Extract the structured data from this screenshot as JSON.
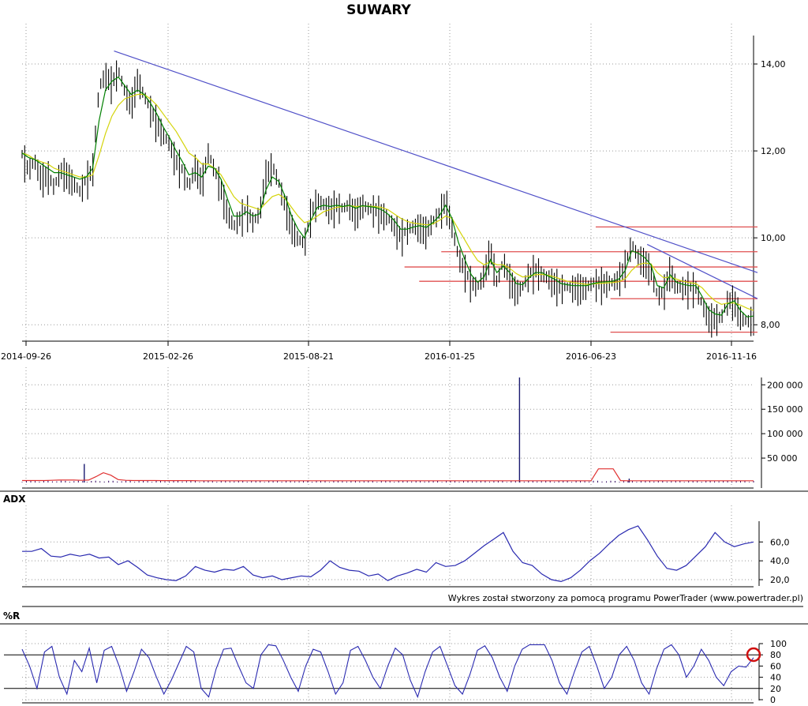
{
  "chart_data": {
    "title": "SUWARY",
    "credit": "Wykres został stworzony za pomocą programu PowerTrader (www.powertrader.pl)",
    "dates": [
      "2014-09-26",
      "2015-02-26",
      "2015-08-21",
      "2016-01-25",
      "2016-06-23",
      "2016-11-16"
    ],
    "panels": [
      {
        "id": "price",
        "type": "ohlc",
        "label": "",
        "ylim": [
          7.75,
          14.6
        ],
        "yticks": [
          "14,00",
          "12,00",
          "10,00",
          "8,00"
        ],
        "ytick_values": [
          14,
          12,
          10,
          8
        ],
        "close": [
          11.95,
          11.6,
          11.8,
          11.4,
          11.5,
          11.2,
          11.6,
          11.5,
          11.3,
          11.1,
          11.4,
          11.6,
          13.5,
          13.8,
          13.6,
          13.9,
          13.4,
          13.1,
          13.7,
          13.3,
          13.0,
          12.7,
          12.4,
          12.2,
          11.8,
          11.6,
          11.2,
          11.7,
          11.3,
          12.0,
          11.6,
          11.2,
          10.6,
          10.3,
          10.5,
          10.7,
          10.4,
          10.6,
          11.5,
          11.7,
          11.3,
          10.8,
          10.3,
          10.0,
          9.9,
          10.6,
          10.9,
          10.8,
          10.7,
          10.8,
          10.7,
          10.8,
          10.6,
          10.8,
          10.7,
          10.7,
          10.6,
          10.5,
          10.3,
          10.1,
          10.2,
          10.3,
          10.3,
          10.2,
          10.4,
          10.6,
          10.9,
          10.3,
          9.6,
          9.3,
          9.0,
          8.9,
          9.2,
          9.8,
          9.0,
          9.5,
          9.1,
          8.8,
          8.9,
          9.2,
          9.3,
          9.2,
          9.1,
          9.0,
          8.9,
          8.9,
          8.9,
          8.9,
          8.9,
          9.0,
          9.0,
          9.0,
          9.0,
          9.1,
          9.4,
          9.9,
          9.6,
          9.5,
          9.3,
          8.7,
          8.8,
          9.3,
          8.9,
          8.9,
          8.9,
          8.9,
          8.5,
          8.2,
          8.2,
          8.2,
          8.6,
          8.6,
          8.2,
          8.1,
          8.2
        ],
        "ma_fast": [
          11.95,
          11.85,
          11.8,
          11.7,
          11.6,
          11.5,
          11.5,
          11.45,
          11.4,
          11.35,
          11.4,
          11.6,
          12.7,
          13.4,
          13.6,
          13.7,
          13.5,
          13.3,
          13.4,
          13.3,
          13.1,
          12.85,
          12.55,
          12.3,
          12.0,
          11.75,
          11.45,
          11.5,
          11.4,
          11.65,
          11.6,
          11.35,
          10.9,
          10.5,
          10.5,
          10.6,
          10.5,
          10.55,
          11.1,
          11.4,
          11.3,
          10.95,
          10.5,
          10.2,
          10.0,
          10.4,
          10.7,
          10.75,
          10.72,
          10.75,
          10.72,
          10.75,
          10.68,
          10.74,
          10.72,
          10.7,
          10.65,
          10.55,
          10.4,
          10.2,
          10.2,
          10.25,
          10.28,
          10.24,
          10.35,
          10.5,
          10.75,
          10.45,
          9.9,
          9.5,
          9.15,
          8.98,
          9.1,
          9.5,
          9.2,
          9.35,
          9.2,
          8.95,
          8.92,
          9.08,
          9.2,
          9.2,
          9.12,
          9.05,
          8.95,
          8.92,
          8.9,
          8.9,
          8.9,
          8.95,
          8.98,
          8.99,
          9.0,
          9.05,
          9.25,
          9.7,
          9.65,
          9.55,
          9.38,
          8.9,
          8.85,
          9.15,
          8.98,
          8.93,
          8.9,
          8.9,
          8.65,
          8.35,
          8.25,
          8.22,
          8.48,
          8.55,
          8.32,
          8.18,
          8.2
        ],
        "ma_slow": [
          11.95,
          11.9,
          11.8,
          11.75,
          11.7,
          11.6,
          11.55,
          11.5,
          11.45,
          11.4,
          11.4,
          11.45,
          11.9,
          12.4,
          12.8,
          13.05,
          13.2,
          13.25,
          13.3,
          13.3,
          13.2,
          13.05,
          12.85,
          12.65,
          12.45,
          12.2,
          11.95,
          11.85,
          11.7,
          11.7,
          11.6,
          11.45,
          11.2,
          10.95,
          10.8,
          10.75,
          10.7,
          10.65,
          10.8,
          10.95,
          11.0,
          10.9,
          10.7,
          10.5,
          10.35,
          10.4,
          10.5,
          10.6,
          10.65,
          10.7,
          10.72,
          10.74,
          10.72,
          10.73,
          10.73,
          10.72,
          10.7,
          10.65,
          10.55,
          10.45,
          10.38,
          10.34,
          10.32,
          10.3,
          10.32,
          10.4,
          10.5,
          10.45,
          10.2,
          9.95,
          9.7,
          9.48,
          9.38,
          9.45,
          9.38,
          9.38,
          9.3,
          9.18,
          9.1,
          9.12,
          9.15,
          9.16,
          9.14,
          9.1,
          9.05,
          9.0,
          8.97,
          8.95,
          8.93,
          8.94,
          8.95,
          8.96,
          8.97,
          8.99,
          9.06,
          9.25,
          9.38,
          9.42,
          9.4,
          9.2,
          9.08,
          9.1,
          9.05,
          9.0,
          8.97,
          8.95,
          8.85,
          8.68,
          8.55,
          8.47,
          8.5,
          8.5,
          8.45,
          8.38,
          8.33
        ],
        "trend_lines": [
          {
            "x": [
              0.125,
              1.0
            ],
            "y": [
              14.3,
              9.2
            ]
          },
          {
            "x": [
              0.85,
              1.0
            ],
            "y": [
              9.85,
              8.6
            ]
          }
        ],
        "levels": [
          {
            "value": 10.25,
            "from": 0.78
          },
          {
            "value": 9.68,
            "from": 0.57
          },
          {
            "value": 9.33,
            "from": 0.52
          },
          {
            "value": 9.0,
            "from": 0.54
          },
          {
            "value": 8.6,
            "from": 0.8
          },
          {
            "value": 7.83,
            "from": 0.8
          }
        ]
      },
      {
        "id": "volume",
        "type": "volume",
        "label": "",
        "ylim": [
          0,
          215000
        ],
        "yticks": [
          "200 000",
          "150 000",
          "100 000",
          "50 000"
        ],
        "ytick_values": [
          200000,
          150000,
          100000,
          50000
        ],
        "spikes": [
          {
            "x": 0.085,
            "value": 38000
          },
          {
            "x": 0.68,
            "value": 215000
          },
          {
            "x": 0.83,
            "value": 8000
          }
        ],
        "avg_line": [
          4000,
          4000,
          4000,
          4000,
          4500,
          5000,
          5000,
          5000,
          4500,
          5000,
          12000,
          20000,
          15000,
          6000,
          4500,
          4000,
          4000,
          4000,
          4000,
          3800,
          3800,
          3800,
          3800,
          3800,
          3600,
          3600,
          3600,
          3600,
          3600,
          3600,
          3600,
          3600,
          3500,
          3500,
          3500,
          3500,
          3500,
          3500,
          3500,
          3500,
          3500,
          3500,
          3500,
          3500,
          3500,
          3500,
          3500,
          3500,
          3500,
          3500,
          3500,
          3500,
          3500,
          3500,
          3500,
          3500,
          3500,
          3500,
          3500,
          3500,
          3500,
          3500,
          3500,
          3500,
          3500,
          3500,
          3500,
          3500,
          3500,
          3500,
          3500,
          3500,
          3500,
          3500,
          3500,
          3500,
          3500,
          3500,
          28000,
          28000,
          28000,
          3800,
          3600,
          3500,
          3500,
          3500,
          3500,
          3500,
          3500,
          3500,
          3500,
          3500,
          3500,
          3500,
          3500,
          3500,
          3500,
          3500,
          3500,
          3500
        ]
      },
      {
        "id": "adx",
        "type": "line",
        "label": "ADX",
        "ylim": [
          15,
          82
        ],
        "yticks": [
          "60,0",
          "40,0",
          "20,0"
        ],
        "ytick_values": [
          60,
          40,
          20
        ],
        "values": [
          50,
          50,
          53,
          45,
          44,
          47,
          45,
          47,
          43,
          44,
          36,
          40,
          33,
          25,
          22,
          20,
          19,
          24,
          34,
          30,
          28,
          31,
          30,
          34,
          25,
          22,
          24,
          20,
          22,
          24,
          23,
          30,
          40,
          33,
          30,
          29,
          24,
          26,
          19,
          24,
          27,
          31,
          28,
          38,
          34,
          35,
          40,
          48,
          56,
          63,
          70,
          50,
          38,
          35,
          26,
          20,
          18,
          22,
          30,
          40,
          48,
          58,
          67,
          73,
          77,
          62,
          45,
          32,
          30,
          35,
          45,
          55,
          70,
          60,
          55,
          58,
          60
        ]
      },
      {
        "id": "williams",
        "type": "line",
        "label": "%R",
        "ylim": [
          0,
          100
        ],
        "yticks": [
          "100",
          "80",
          "60",
          "40",
          "20",
          "0"
        ],
        "ytick_values": [
          100,
          80,
          60,
          40,
          20,
          0
        ],
        "ref_lines": [
          80,
          20
        ],
        "values": [
          90,
          60,
          20,
          85,
          95,
          40,
          10,
          70,
          50,
          92,
          30,
          88,
          95,
          60,
          15,
          50,
          90,
          75,
          40,
          10,
          35,
          65,
          95,
          85,
          20,
          5,
          55,
          90,
          92,
          60,
          30,
          20,
          80,
          98,
          96,
          70,
          40,
          15,
          60,
          90,
          85,
          50,
          10,
          30,
          88,
          95,
          70,
          40,
          20,
          60,
          92,
          80,
          35,
          5,
          50,
          85,
          95,
          60,
          25,
          10,
          45,
          88,
          96,
          75,
          40,
          15,
          60,
          90,
          98,
          98,
          98,
          70,
          30,
          10,
          50,
          85,
          95,
          60,
          20,
          40,
          80,
          95,
          70,
          30,
          10,
          55,
          90,
          98,
          80,
          40,
          60,
          90,
          70,
          40,
          25,
          50,
          60,
          58,
          75
        ]
      }
    ]
  }
}
